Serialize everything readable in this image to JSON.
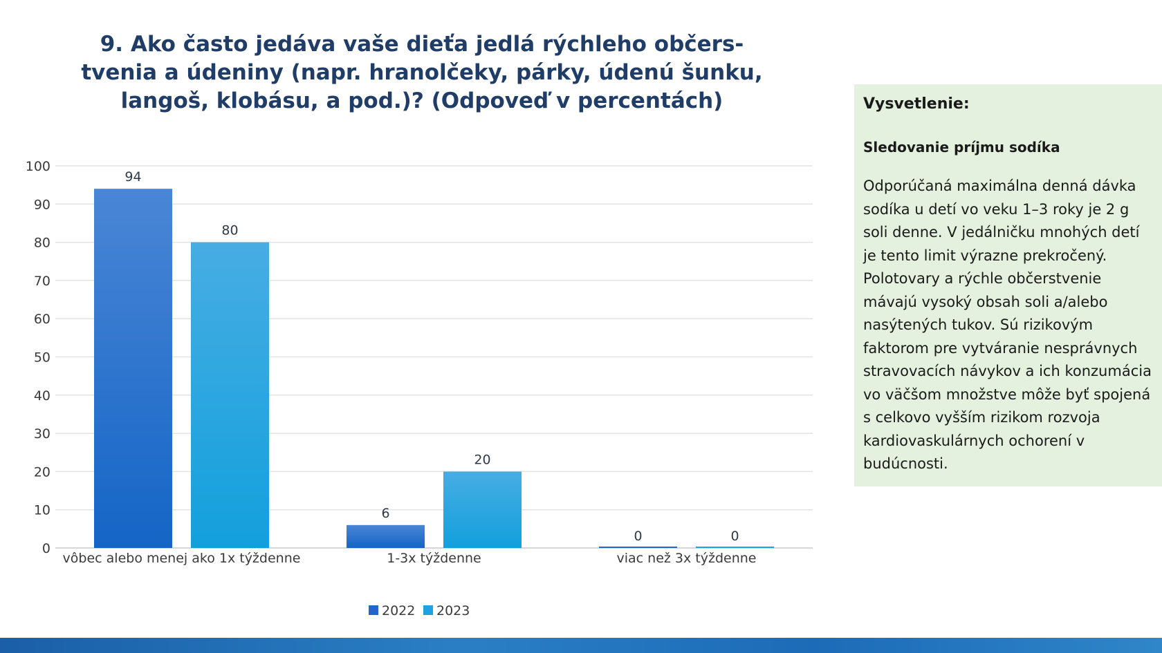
{
  "chart_data": {
    "type": "bar",
    "title": "9. Ako často jedáva vaše dieťa jedlá rýchleho občers-tvenia a údeniny (napr. hranolčeky, párky, údenú šunku, langoš, klobásu, a pod.)? (Odpoveď v percentách)",
    "categories": [
      "vôbec alebo menej ako 1x týždenne",
      "1-3x týždenne",
      "viac než 3x týždenne"
    ],
    "series": [
      {
        "name": "2022",
        "values": [
          94,
          6,
          0
        ],
        "color": "#2166c8"
      },
      {
        "name": "2023",
        "values": [
          80,
          20,
          0
        ],
        "color": "#1fa2df"
      }
    ],
    "ylim": [
      0,
      100
    ],
    "yticks": [
      "0",
      "10",
      "20",
      "30",
      "40",
      "50",
      "60",
      "70",
      "80",
      "90",
      "100"
    ],
    "grid": true,
    "legend": "bottom"
  },
  "info": {
    "heading": "Vysvetlenie:",
    "subheading": "Sledovanie príjmu sodíka",
    "body": "Odporúčaná maximálna denná dávka sodíka u detí vo veku 1–3 roky je 2 g soli denne. V jedálničku mnohých detí je tento limit výrazne prekročený. Polotovary a rýchle občerstvenie mávajú vysoký obsah soli a/alebo nasýtených tukov. Sú rizikovým faktorom pre vytváranie nesprávnych stravovacích návykov a ich konzumácia vo väčšom množstve môže byť spojená s celkovo vyšším rizikom rozvoja kardiovaskulárnych ochorení v budúcnosti."
  }
}
